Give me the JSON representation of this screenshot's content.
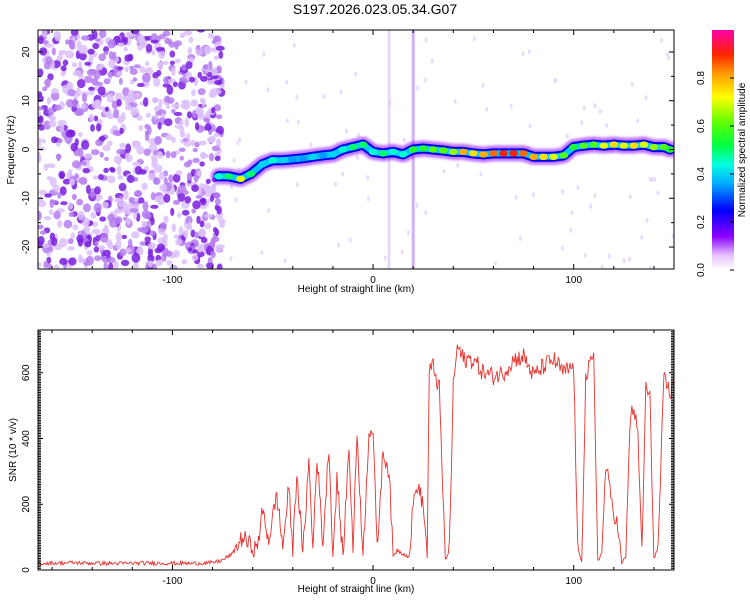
{
  "figure": {
    "title": "S197.2026.023.05.34.G07",
    "colors": {
      "snr_line": "#e8322d",
      "frame": "#000000",
      "scatter_noise": "#9a4be0"
    }
  },
  "chart_data": [
    {
      "type": "heatmap",
      "title": "",
      "xlabel": "Height of straight line (km)",
      "ylabel": "Frequency (Hz)",
      "xlim": [
        -167,
        150
      ],
      "ylim": [
        -24.5,
        24.5
      ],
      "xticks": [
        -100,
        0,
        100
      ],
      "xtick_labels": [
        "-100",
        "0",
        "100"
      ],
      "yticks": [
        -20,
        -10,
        0,
        10,
        20
      ],
      "ytick_labels": [
        "-20",
        "-10",
        "0",
        "10",
        "20"
      ],
      "noise_region_x": [
        -167,
        -75
      ],
      "ridge": {
        "x": [
          -77,
          -72,
          -66,
          -61,
          -55,
          -50,
          -45,
          -40,
          -35,
          -30,
          -25,
          -20,
          -15,
          -10,
          -5,
          0,
          5,
          10,
          15,
          20,
          25,
          30,
          35,
          40,
          45,
          50,
          55,
          60,
          65,
          70,
          75,
          80,
          85,
          90,
          95,
          100,
          105,
          110,
          115,
          120,
          125,
          130,
          135,
          140,
          145,
          148
        ],
        "y": [
          -5.5,
          -5.5,
          -6.0,
          -5.0,
          -3.0,
          -2.2,
          -2.2,
          -2.0,
          -1.8,
          -1.5,
          -1.2,
          -1.0,
          0.0,
          0.5,
          1.0,
          -0.5,
          -0.8,
          -0.5,
          -1.0,
          0.0,
          0.2,
          0.0,
          -0.2,
          -0.5,
          -0.5,
          -0.8,
          -1.0,
          -0.8,
          -0.8,
          -0.8,
          -0.8,
          -1.5,
          -1.5,
          -1.5,
          -1.2,
          0.5,
          0.8,
          1.0,
          0.8,
          1.0,
          0.8,
          0.8,
          1.0,
          0.5,
          0.5,
          0.0
        ],
        "amplitude": [
          0.45,
          0.5,
          0.7,
          0.5,
          0.4,
          0.45,
          0.4,
          0.35,
          0.35,
          0.4,
          0.35,
          0.4,
          0.45,
          0.5,
          0.5,
          0.45,
          0.5,
          0.45,
          0.45,
          0.55,
          0.55,
          0.6,
          0.6,
          0.65,
          0.8,
          0.75,
          0.8,
          0.85,
          0.9,
          0.9,
          0.85,
          0.8,
          0.75,
          0.7,
          0.6,
          0.55,
          0.6,
          0.6,
          0.7,
          0.75,
          0.7,
          0.75,
          0.7,
          0.65,
          0.6,
          0.55
        ]
      },
      "colorbar": {
        "label": "Normalized spectral amplitude",
        "range": [
          0,
          1
        ],
        "ticks": [
          0.0,
          0.2,
          0.4,
          0.6,
          0.8
        ],
        "tick_labels": [
          "0.0",
          "0.2",
          "0.4",
          "0.6",
          "0.8"
        ],
        "colormap": "rainbow (white-violet-blue-cyan-green-yellow-red)"
      }
    },
    {
      "type": "line",
      "title": "",
      "xlabel": "Height of straight line (km)",
      "ylabel": "SNR (10 * v/v)",
      "xlim": [
        -167,
        150
      ],
      "ylim": [
        0,
        730
      ],
      "xticks": [
        -100,
        0,
        100
      ],
      "xtick_labels": [
        "-100",
        "0",
        "100"
      ],
      "yticks": [
        0,
        200,
        400,
        600
      ],
      "ytick_labels": [
        "0",
        "200",
        "400",
        "600"
      ],
      "series": [
        {
          "name": "SNR",
          "x": [
            -167,
            -150,
            -130,
            -110,
            -90,
            -80,
            -75,
            -70,
            -65,
            -62,
            -58,
            -55,
            -52,
            -48,
            -45,
            -42,
            -40,
            -38,
            -35,
            -32,
            -30,
            -28,
            -25,
            -22,
            -20,
            -18,
            -15,
            -12,
            -10,
            -8,
            -5,
            -2,
            0,
            2,
            5,
            8,
            10,
            12,
            15,
            18,
            20,
            22,
            25,
            27,
            28,
            30,
            33,
            36,
            38,
            40,
            42,
            45,
            50,
            55,
            60,
            65,
            70,
            75,
            80,
            85,
            90,
            95,
            100,
            102,
            104,
            106,
            108,
            110,
            112,
            114,
            116,
            118,
            120,
            122,
            124,
            126,
            128,
            130,
            132,
            134,
            136,
            138,
            140,
            142,
            145,
            148,
            150
          ],
          "y": [
            20,
            22,
            20,
            21,
            20,
            22,
            30,
            50,
            100,
            80,
            60,
            180,
            90,
            230,
            70,
            250,
            60,
            300,
            50,
            330,
            60,
            350,
            80,
            380,
            40,
            280,
            40,
            380,
            60,
            420,
            40,
            430,
            420,
            60,
            360,
            300,
            40,
            60,
            50,
            40,
            200,
            260,
            200,
            40,
            600,
            620,
            550,
            30,
            60,
            560,
            680,
            640,
            640,
            600,
            590,
            600,
            640,
            650,
            590,
            620,
            640,
            600,
            620,
            60,
            30,
            580,
            620,
            640,
            30,
            50,
            320,
            240,
            180,
            130,
            20,
            40,
            450,
            500,
            400,
            60,
            560,
            520,
            40,
            60,
            580,
            540,
            560
          ]
        }
      ]
    }
  ]
}
